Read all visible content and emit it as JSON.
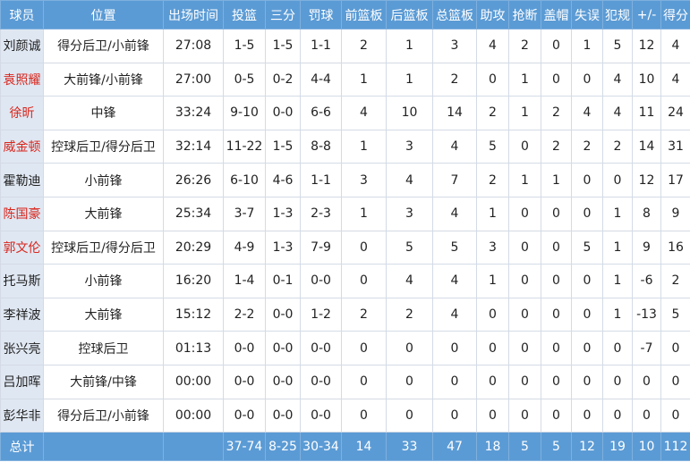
{
  "table": {
    "header": [
      "球员",
      "位置",
      "出场时间",
      "投篮",
      "三分",
      "罚球",
      "前篮板",
      "后篮板",
      "总篮板",
      "助攻",
      "抢断",
      "盖帽",
      "失误",
      "犯规",
      "+/-",
      "得分"
    ],
    "name_colors": [
      "#222222",
      "#d9261c",
      "#d9261c",
      "#d9261c",
      "#222222",
      "#d9261c",
      "#d9261c",
      "#222222",
      "#222222",
      "#222222",
      "#222222",
      "#222222"
    ],
    "rows": [
      [
        "刘颜诚",
        "得分后卫/小前锋",
        "27:08",
        "1-5",
        "1-5",
        "1-1",
        2,
        1,
        3,
        4,
        2,
        0,
        1,
        5,
        12,
        4
      ],
      [
        "袁照耀",
        "大前锋/小前锋",
        "27:00",
        "0-5",
        "0-2",
        "4-4",
        1,
        1,
        2,
        0,
        1,
        0,
        0,
        4,
        10,
        4
      ],
      [
        "徐昕",
        "中锋",
        "33:24",
        "9-10",
        "0-0",
        "6-6",
        4,
        10,
        14,
        2,
        1,
        2,
        4,
        4,
        11,
        24
      ],
      [
        "威金顿",
        "控球后卫/得分后卫",
        "32:14",
        "11-22",
        "1-5",
        "8-8",
        1,
        3,
        4,
        5,
        0,
        2,
        2,
        2,
        14,
        31
      ],
      [
        "霍勒迪",
        "小前锋",
        "26:26",
        "6-10",
        "4-6",
        "1-1",
        3,
        4,
        7,
        2,
        1,
        1,
        0,
        0,
        12,
        17
      ],
      [
        "陈国豪",
        "大前锋",
        "25:34",
        "3-7",
        "1-3",
        "2-3",
        1,
        3,
        4,
        1,
        0,
        0,
        0,
        1,
        8,
        9
      ],
      [
        "郭文伦",
        "控球后卫/得分后卫",
        "20:29",
        "4-9",
        "1-3",
        "7-9",
        0,
        5,
        5,
        3,
        0,
        0,
        5,
        1,
        9,
        16
      ],
      [
        "托马斯",
        "小前锋",
        "16:20",
        "1-4",
        "0-1",
        "0-0",
        0,
        4,
        4,
        1,
        0,
        0,
        0,
        1,
        -6,
        2
      ],
      [
        "李祥波",
        "大前锋",
        "15:12",
        "2-2",
        "0-0",
        "1-2",
        2,
        2,
        4,
        0,
        0,
        0,
        0,
        1,
        -13,
        5
      ],
      [
        "张兴亮",
        "控球后卫",
        "01:13",
        "0-0",
        "0-0",
        "0-0",
        0,
        0,
        0,
        0,
        0,
        0,
        0,
        0,
        -7,
        0
      ],
      [
        "吕加晖",
        "大前锋/中锋",
        "00:00",
        "0-0",
        "0-0",
        "0-0",
        0,
        0,
        0,
        0,
        0,
        0,
        0,
        0,
        0,
        0
      ],
      [
        "彭华非",
        "得分后卫/小前锋",
        "00:00",
        "0-0",
        "0-0",
        "0-0",
        0,
        0,
        0,
        0,
        0,
        0,
        0,
        0,
        0,
        0
      ]
    ],
    "total": [
      "总计",
      null,
      null,
      "37-74",
      "8-25",
      "30-34",
      14,
      33,
      47,
      18,
      5,
      5,
      12,
      19,
      10,
      112
    ]
  }
}
